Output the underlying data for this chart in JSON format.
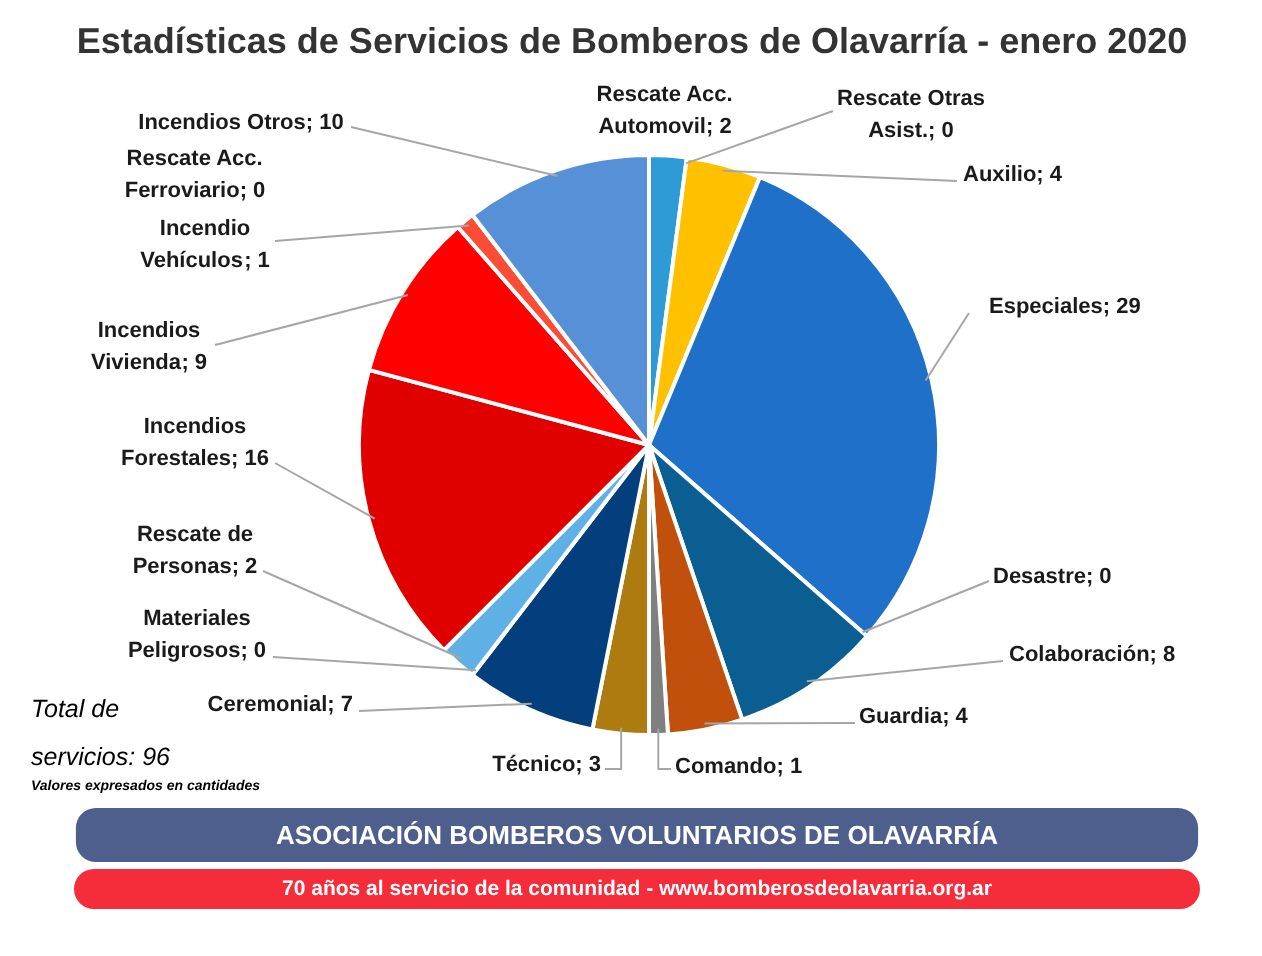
{
  "chart_data": {
    "type": "pie",
    "title": "Estadísticas de Servicios de Bomberos de Olavarría - enero 2020",
    "categories": [
      "Rescate Acc. Automovil",
      "Rescate Otras Asist.",
      "Auxilio",
      "Especiales",
      "Desastre",
      "Colaboración",
      "Guardia",
      "Comando",
      "Técnico",
      "Ceremonial",
      "Materiales Peligrosos",
      "Rescate de Personas",
      "Incendios Forestales",
      "Incendios Vivienda",
      "Incendio Vehículos",
      "Rescate Acc. Ferroviario",
      "Incendios Otros"
    ],
    "values": [
      2,
      0,
      4,
      29,
      0,
      8,
      4,
      1,
      3,
      7,
      0,
      2,
      16,
      9,
      1,
      0,
      10
    ],
    "value_labels": [
      "; 2",
      "; 0",
      "; 4",
      "; 29",
      "; 0",
      "; 8",
      "; 4",
      "; 1",
      "; 3",
      "; 7",
      "; 0",
      "; 2",
      "; 16",
      "; 9",
      "; 1",
      "; 0",
      "; 10"
    ],
    "colors": [
      "#2e9bd6",
      null,
      "#ffc000",
      "#1f70c8",
      null,
      "#0b5e92",
      "#c0500c",
      "#7f7f7f",
      "#ad7b10",
      "#033f7c",
      null,
      "#5eb0e5",
      "#e00000",
      "#ff0000",
      "#fb4d36",
      null,
      "#5690d6"
    ],
    "annotations": [
      "Total de servicios: 96",
      "Valores expresados en cantidades",
      "ASOCIACIÓN BOMBEROS VOLUNTARIOS DE OLAVARRÍA",
      "70 años al servicio de la comunidad - www.bomberosdeolavarria.org.ar"
    ]
  }
}
